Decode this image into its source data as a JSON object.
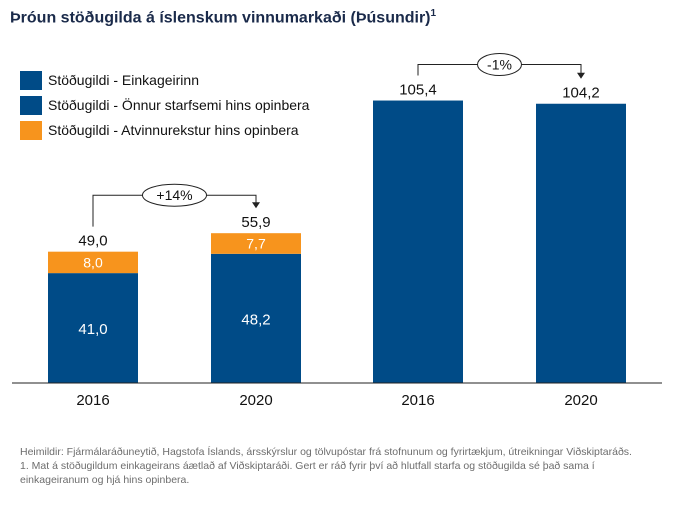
{
  "title": "Þróun stöðugilda á íslenskum vinnumarkaði (Þúsundir)",
  "title_superscript": "1",
  "colors": {
    "private": "#004b87",
    "public_other": "#004b87",
    "public_business": "#f7941d",
    "text_dark": "#111111"
  },
  "chart_data": {
    "type": "bar",
    "stacked": true,
    "categories": [
      "2016",
      "2020",
      "2016",
      "2020"
    ],
    "series": [
      {
        "name": "Stöðugildi - Einkageirinn",
        "values": [
          41.0,
          48.2,
          null,
          null
        ]
      },
      {
        "name": "Stöðugildi - Önnur starfsemi hins opinbera",
        "values": [
          null,
          null,
          105.4,
          104.2
        ]
      },
      {
        "name": "Stöðugildi - Atvinnurekstur hins opinbera",
        "values": [
          8.0,
          7.7,
          null,
          null
        ]
      }
    ],
    "segment_labels": [
      {
        "private": "41,0",
        "business": "8,0"
      },
      {
        "private": "48,2",
        "business": "7,7"
      },
      {
        "public": null,
        "business": null
      },
      {
        "public": null,
        "business": null
      }
    ],
    "total_labels": [
      "49,0",
      "55,9",
      "105,4",
      "104,2"
    ],
    "annotations": [
      {
        "text": "+14%",
        "from": 0,
        "to": 1
      },
      {
        "text": "-1%",
        "from": 2,
        "to": 3
      }
    ],
    "legend_position": "top-left",
    "grid": false,
    "xlabel": "",
    "ylabel": ""
  },
  "footnotes": [
    "Heimildir: Fjármálaráðuneytið, Hagstofa Íslands, ársskýrslur og tölvupóstar frá stofnunum og fyrirtækjum, útreikningar Viðskiptaráðs.",
    "1. Mat á stöðugildum einkageirans áætlað af Viðskiptaráði. Gert er ráð fyrir því að hlutfall starfa og stöðugilda sé það sama í einkageiranum og hjá hins opinbera."
  ]
}
